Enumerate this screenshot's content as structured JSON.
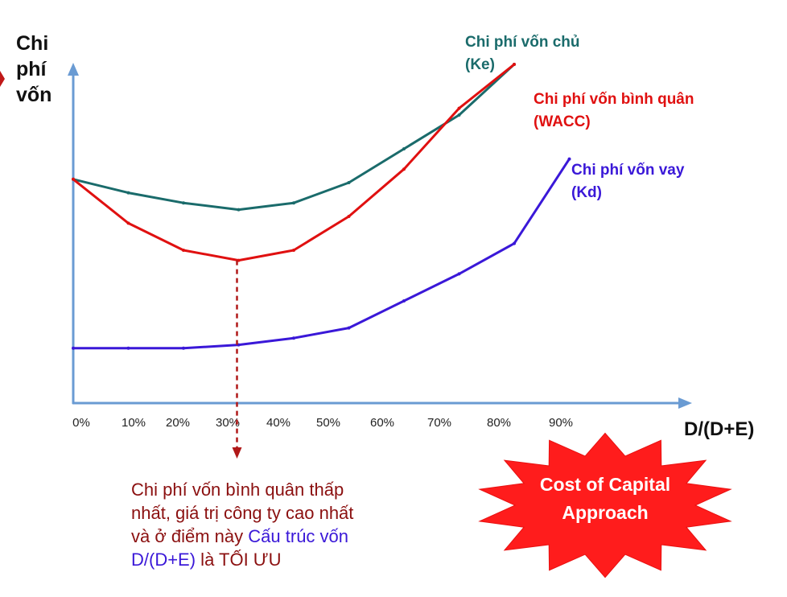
{
  "chart_data": {
    "type": "line",
    "y_title_lines": [
      "Chi",
      "phí",
      "vốn"
    ],
    "xlabel": "D/(D+E)",
    "x_ticks": [
      "0%",
      "10%",
      "20%",
      "30%",
      "40%",
      "50%",
      "60%",
      "70%",
      "80%",
      "90%"
    ],
    "xlim": [
      0,
      110
    ],
    "ylim": [
      0,
      100
    ],
    "grid": false,
    "optimal_x": 30,
    "series": [
      {
        "name_lines": [
          "Chi phí vốn chủ",
          "(Ke)"
        ],
        "color": "#1a6b6b",
        "x": [
          0,
          10,
          20,
          30,
          40,
          50,
          60,
          70,
          80
        ],
        "y": [
          66,
          62,
          59,
          57,
          59,
          65,
          75,
          85,
          100
        ]
      },
      {
        "name_lines": [
          "Chi phí vốn bình quân",
          "(WACC)"
        ],
        "color": "#e01010",
        "x": [
          0,
          10,
          20,
          30,
          40,
          50,
          60,
          70,
          80
        ],
        "y": [
          66,
          53,
          45,
          42,
          45,
          55,
          69,
          87,
          100
        ]
      },
      {
        "name_lines": [
          "Chi phí vốn vay",
          "(Kd)"
        ],
        "color": "#3a18d8",
        "x": [
          0,
          10,
          20,
          30,
          40,
          50,
          60,
          70,
          80,
          90
        ],
        "y": [
          16,
          16,
          16,
          17,
          19,
          22,
          30,
          38,
          47,
          72
        ]
      }
    ]
  },
  "note": {
    "color_dark": "#8b1010",
    "color_blue": "#3a18d8",
    "line1": "Chi phí vốn bình quân thấp",
    "line2": "nhất, giá trị công ty cao nhất",
    "line3a": "và ở điểm này ",
    "line3b": "Cấu trúc vốn",
    "line4a": "D/(D+E)",
    "line4b": " là TỐI ƯU"
  },
  "badge": {
    "color": "#ff1c1c",
    "line1": "Cost of Capital",
    "line2": "Approach"
  },
  "colors": {
    "axis": "#6a9bd3",
    "arrow_dashed": "#b01818"
  }
}
